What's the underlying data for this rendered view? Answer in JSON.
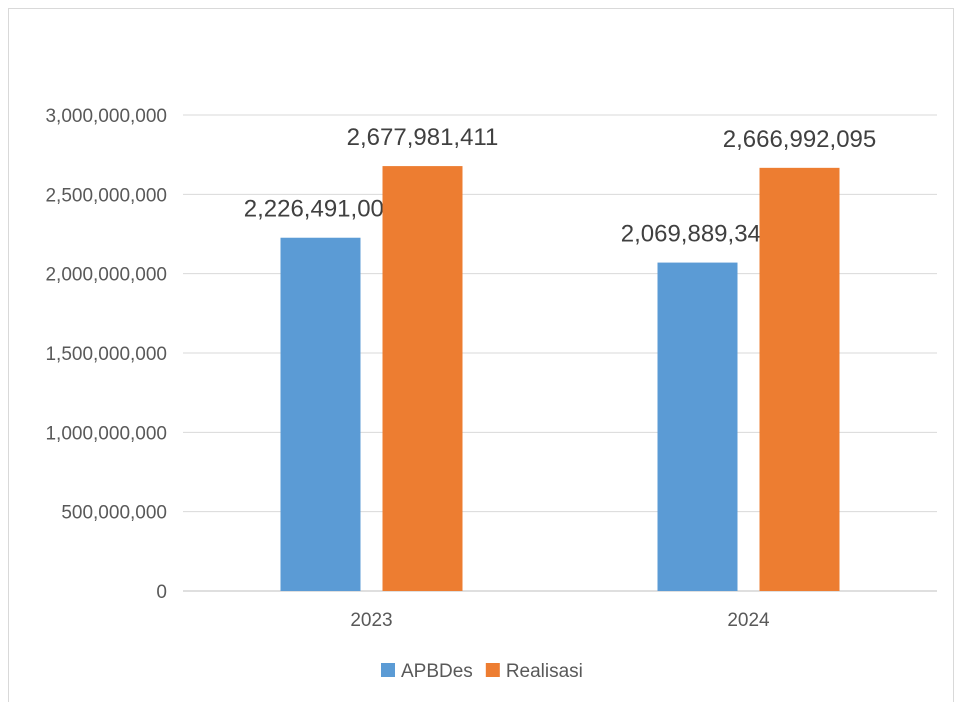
{
  "chart_data": {
    "type": "bar",
    "title": "",
    "xlabel": "",
    "ylabel": "",
    "categories": [
      "2023",
      "2024"
    ],
    "series": [
      {
        "name": "APBDes",
        "values": [
          2226491000,
          2069889340
        ],
        "labels": [
          "2,226,491,000",
          "2,069,889,340"
        ],
        "color": "#5b9bd5"
      },
      {
        "name": "Realisasi",
        "values": [
          2677981411,
          2666992095
        ],
        "labels": [
          "2,677,981,411",
          "2,666,992,095"
        ],
        "color": "#ed7d31"
      }
    ],
    "ylim": [
      0,
      3000000000
    ],
    "yticks": [
      {
        "value": 0,
        "label": "0"
      },
      {
        "value": 500000000,
        "label": "500,000,000"
      },
      {
        "value": 1000000000,
        "label": "1,000,000,000"
      },
      {
        "value": 1500000000,
        "label": "1,500,000,000"
      },
      {
        "value": 2000000000,
        "label": "2,000,000,000"
      },
      {
        "value": 2500000000,
        "label": "2,500,000,000"
      },
      {
        "value": 3000000000,
        "label": "3,000,000,000"
      }
    ],
    "grid": true,
    "legend_position": "bottom"
  }
}
